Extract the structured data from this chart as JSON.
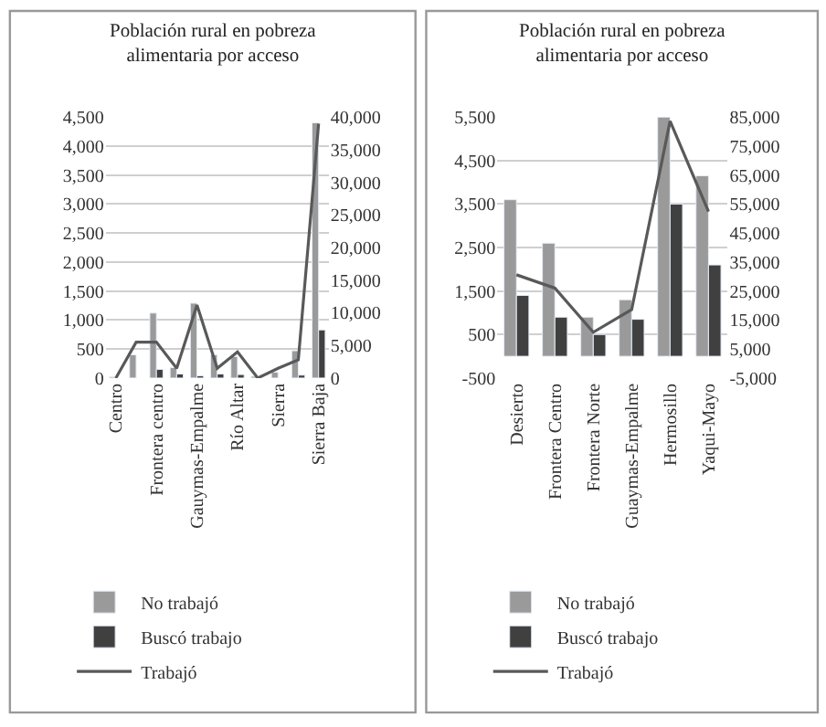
{
  "chart_data": [
    {
      "type": "bar",
      "title": "Población rural en pobreza alimentaria por acceso",
      "categories": [
        "Centro",
        null,
        "Frontera centro",
        null,
        "Gauymas-Empalme",
        null,
        "Río Altar",
        null,
        "Sierra",
        null,
        "Sierra Baja"
      ],
      "series": [
        {
          "name": "No trabajó",
          "color": "#9a9a9a",
          "values": [
            20,
            400,
            1120,
            180,
            1290,
            400,
            370,
            30,
            100,
            470,
            4400
          ]
        },
        {
          "name": "Buscó trabajo",
          "color": "#404040",
          "values": [
            null,
            null,
            150,
            70,
            40,
            70,
            60,
            null,
            null,
            50,
            830
          ]
        },
        {
          "name": "Trabajó",
          "color": "#595959",
          "type": "line",
          "axis": "y2",
          "values": [
            0,
            5500,
            5500,
            1500,
            11200,
            1500,
            4000,
            0,
            1500,
            2800,
            39000
          ]
        }
      ],
      "ylim": [
        0,
        4500
      ],
      "yticks": [
        {
          "value": 0,
          "label": "0"
        },
        {
          "value": 500,
          "label": "500"
        },
        {
          "value": 1000,
          "label": "1,000"
        },
        {
          "value": 1500,
          "label": "1,500"
        },
        {
          "value": 2000,
          "label": "2,000"
        },
        {
          "value": 2500,
          "label": "2,500"
        },
        {
          "value": 3000,
          "label": "3,000"
        },
        {
          "value": 3500,
          "label": "3,500"
        },
        {
          "value": 4000,
          "label": "4,000"
        },
        {
          "value": 4500,
          "label": "4,500"
        }
      ],
      "y2lim": [
        0,
        40000
      ],
      "y2ticks": [
        {
          "value": 0,
          "label": "0"
        },
        {
          "value": 5000,
          "label": "5,000"
        },
        {
          "value": 10000,
          "label": "10,000"
        },
        {
          "value": 15000,
          "label": "15,000"
        },
        {
          "value": 20000,
          "label": "20,000"
        },
        {
          "value": 25000,
          "label": "25,000"
        },
        {
          "value": 30000,
          "label": "30,000"
        },
        {
          "value": 35000,
          "label": "35,000"
        },
        {
          "value": 40000,
          "label": "40,000"
        }
      ],
      "grid": "y",
      "legend": "bottom"
    },
    {
      "type": "bar",
      "title": "Población rural en pobreza alimentaria por acceso",
      "categories": [
        "Desierto",
        "Frontera Centro",
        "Frontera Norte",
        "Guaymas-Empalme",
        "Hermosillo",
        "Yaqui-Mayo"
      ],
      "series": [
        {
          "name": "No trabajó",
          "color": "#9a9a9a",
          "values": [
            3600,
            2600,
            900,
            1300,
            5500,
            4150
          ]
        },
        {
          "name": "Buscó trabajo",
          "color": "#404040",
          "values": [
            1400,
            900,
            500,
            850,
            3500,
            2100
          ]
        },
        {
          "name": "Trabajó",
          "color": "#595959",
          "type": "line",
          "axis": "y2",
          "values": [
            30600,
            26000,
            10800,
            18600,
            83600,
            52400
          ]
        }
      ],
      "ylim": [
        -500,
        5500
      ],
      "yticks": [
        {
          "value": -500,
          "label": "-500"
        },
        {
          "value": 500,
          "label": "500"
        },
        {
          "value": 1500,
          "label": "1,500"
        },
        {
          "value": 2500,
          "label": "2,500"
        },
        {
          "value": 3500,
          "label": "3,500"
        },
        {
          "value": 4500,
          "label": "4,500"
        },
        {
          "value": 5500,
          "label": "5,500"
        }
      ],
      "y2lim": [
        -5000,
        85000
      ],
      "y2ticks": [
        {
          "value": -5000,
          "label": "-5,000"
        },
        {
          "value": 5000,
          "label": "5,000"
        },
        {
          "value": 15000,
          "label": "15,000"
        },
        {
          "value": 25000,
          "label": "25,000"
        },
        {
          "value": 35000,
          "label": "35,000"
        },
        {
          "value": 45000,
          "label": "45,000"
        },
        {
          "value": 55000,
          "label": "55,000"
        },
        {
          "value": 65000,
          "label": "65,000"
        },
        {
          "value": 75000,
          "label": "75,000"
        },
        {
          "value": 85000,
          "label": "85,000"
        }
      ],
      "grid": "y",
      "legend": "bottom"
    }
  ]
}
